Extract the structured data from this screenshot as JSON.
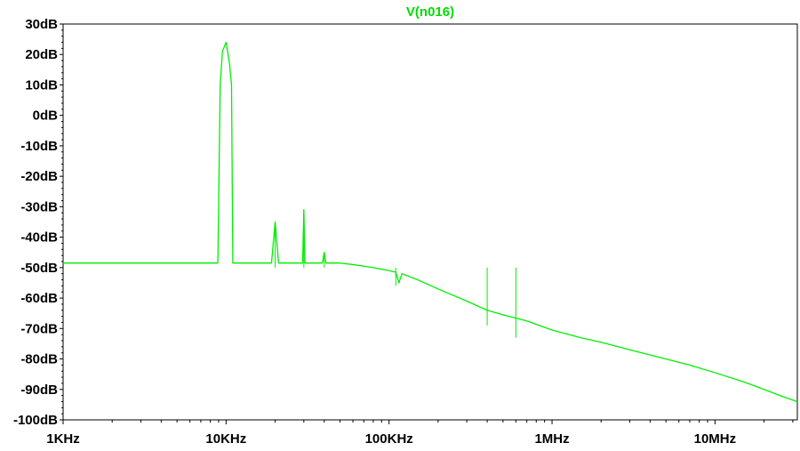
{
  "chart_data": {
    "type": "line",
    "title": "V(n016)",
    "title_color": "#00dd00",
    "series_color": "#00ee00",
    "x_scale": "log",
    "xlim": [
      1000,
      32000000
    ],
    "ylim": [
      -100,
      30
    ],
    "grid": false,
    "x_ticks": [
      {
        "value": 1000,
        "label": "1KHz"
      },
      {
        "value": 10000,
        "label": "10KHz"
      },
      {
        "value": 100000,
        "label": "100KHz"
      },
      {
        "value": 1000000,
        "label": "1MHz"
      },
      {
        "value": 10000000,
        "label": "10MHz"
      }
    ],
    "y_ticks": [
      {
        "value": 30,
        "label": "30dB"
      },
      {
        "value": 20,
        "label": "20dB"
      },
      {
        "value": 10,
        "label": "10dB"
      },
      {
        "value": 0,
        "label": "0dB"
      },
      {
        "value": -10,
        "label": "-10dB"
      },
      {
        "value": -20,
        "label": "-20dB"
      },
      {
        "value": -30,
        "label": "-30dB"
      },
      {
        "value": -40,
        "label": "-40dB"
      },
      {
        "value": -50,
        "label": "-50dB"
      },
      {
        "value": -60,
        "label": "-60dB"
      },
      {
        "value": -70,
        "label": "-70dB"
      },
      {
        "value": -80,
        "label": "-80dB"
      },
      {
        "value": -90,
        "label": "-90dB"
      },
      {
        "value": -100,
        "label": "-100dB"
      }
    ],
    "series": [
      {
        "x": [
          1000,
          2000,
          5000,
          8900,
          9000,
          9200,
          9500,
          10000,
          10500,
          10800,
          11000,
          15000,
          19000,
          20000,
          21000,
          25000,
          29500,
          30000,
          30500,
          35000,
          39000,
          40000,
          41000,
          50000,
          60000,
          70000,
          80000,
          90000,
          100000,
          110000,
          115000,
          120000,
          150000,
          200000,
          300000,
          400000,
          500000,
          700000,
          1000000,
          1500000,
          2000000,
          3000000,
          5000000,
          7000000,
          10000000,
          15000000,
          20000000,
          25000000,
          30000000,
          32000000
        ],
        "y": [
          -48.5,
          -48.5,
          -48.5,
          -48.5,
          -30,
          10,
          21,
          24,
          17,
          10,
          -48.5,
          -48.5,
          -48.5,
          -35,
          -48.5,
          -48.5,
          -48.5,
          -31,
          -48.5,
          -48.5,
          -48.5,
          -45,
          -48.5,
          -48.5,
          -49,
          -49.5,
          -50,
          -50.5,
          -51,
          -51.5,
          -55,
          -52,
          -54,
          -57,
          -61,
          -64,
          -65.5,
          -67.5,
          -70.5,
          -73,
          -74.5,
          -77,
          -80,
          -82,
          -84.5,
          -87.5,
          -90,
          -92,
          -93.5,
          -94
        ]
      }
    ],
    "annotations": [
      {
        "x": 30000,
        "y": -31
      },
      {
        "x": 20000,
        "y": -35
      },
      {
        "x": 40000,
        "y": -45
      },
      {
        "x": 110000,
        "y": -56
      },
      {
        "x": 400000,
        "y": -69
      },
      {
        "x": 600000,
        "y": -73
      }
    ]
  }
}
